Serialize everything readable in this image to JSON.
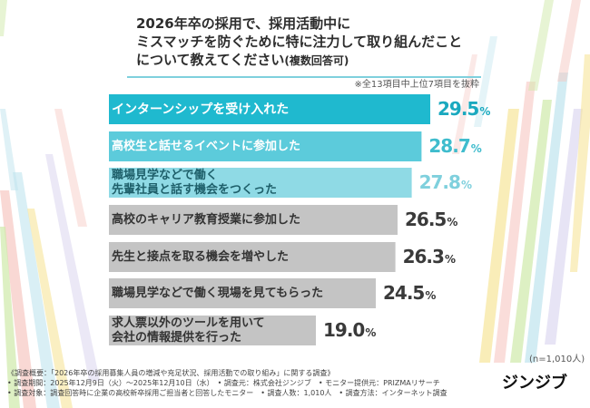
{
  "question": {
    "line1": "2026年卒の採用で、採用活動中に",
    "line2": "ミスマッチを防ぐために特に注力して取り組んだこと",
    "line3": "について教えてください",
    "line3_note": "(複数回答可)"
  },
  "extract_note": "※全13項目中上位7項目を抜粋",
  "sample_note": "(n=1,010人)",
  "footer": {
    "line1": "《調査概要：「2026年卒の採用募集人員の増減や充足状況、採用活動での取り組み」に関する調査》",
    "line2": "• 調査期間：2025年12月9日（火）〜2025年12月10日（水）　• 調査元：株式会社ジンジブ　• モニター提供元：PRIZMAリサーチ",
    "line3": "• 調査対象：調査回答時に企業の高校新卒採用ご担当者と回答したモニター　• 調査人数：1,010人　• 調査方法：インターネット調査"
  },
  "logo": "ジンジブ",
  "colors": {
    "bar_top1": "#1fb9cf",
    "bar_top2": "#5ccbdb",
    "bar_top3": "#8fdae5",
    "bar_rest": "#c4c4c4",
    "val_top1": "#1aa9bf",
    "val_top2": "#3fbccd",
    "val_top3": "#7fd0dd",
    "val_rest": "#3a3a3a"
  },
  "chart_data": {
    "type": "bar",
    "orientation": "horizontal",
    "unit": "%",
    "categories": [
      [
        "インターンシップを受け入れた"
      ],
      [
        "高校生と話せるイベントに参加した"
      ],
      [
        "職場見学などで働く",
        "先輩社員と話す機会をつくった"
      ],
      [
        "高校のキャリア教育授業に参加した"
      ],
      [
        "先生と接点を取る機会を増やした"
      ],
      [
        "職場見学などで働く現場を見てもらった"
      ],
      [
        "求人票以外のツールを用いて",
        "会社の情報提供を行った"
      ]
    ],
    "values": [
      29.5,
      28.7,
      27.8,
      26.5,
      26.3,
      24.5,
      19.0
    ],
    "value_labels": [
      "29.5",
      "28.7",
      "27.8",
      "26.5",
      "26.3",
      "24.5",
      "19.0"
    ],
    "xlim": [
      0,
      30
    ],
    "grid": false
  }
}
